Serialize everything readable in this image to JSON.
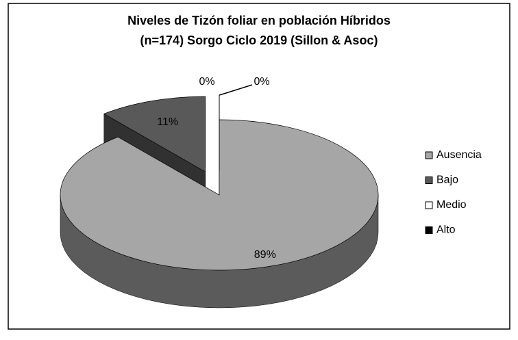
{
  "chart_data": {
    "type": "pie3d",
    "title": [
      "Niveles de Tizón foliar en población Híbridos",
      "(n=174) Sorgo Ciclo 2019 (Sillon & Asoc)"
    ],
    "categories": [
      "Ausencia",
      "Bajo",
      "Medio",
      "Alto"
    ],
    "values": [
      89,
      11,
      0,
      0
    ],
    "value_labels": [
      "89%",
      "11%",
      "0%",
      "0%"
    ],
    "colors": [
      "#a6a6a6",
      "#595959",
      "#ffffff",
      "#000000"
    ],
    "legend": "right"
  }
}
